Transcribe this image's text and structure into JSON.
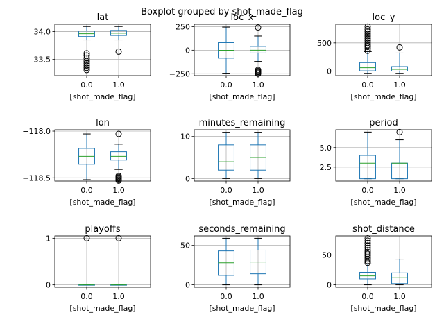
{
  "suptitle": "Boxplot grouped by shot_made_flag",
  "chart_data": [
    {
      "type": "box",
      "title": "lat",
      "xlabel": "[shot_made_flag]",
      "categories": [
        "0.0",
        "1.0"
      ],
      "ylim": [
        33.21,
        34.13
      ],
      "yticks": [
        33.5,
        34.0
      ],
      "ytick_labels": [
        "33.5",
        "34.0"
      ],
      "grid": true,
      "boxes": [
        {
          "whislo": 33.85,
          "q1": 33.91,
          "med": 33.96,
          "q3": 34.01,
          "whishi": 34.09,
          "fliers": [
            33.31,
            33.35,
            33.39,
            33.43,
            33.47,
            33.52,
            33.57,
            33.61
          ]
        },
        {
          "whislo": 33.85,
          "q1": 33.93,
          "med": 33.97,
          "q3": 34.02,
          "whishi": 34.09,
          "fliers": [
            33.64
          ]
        }
      ]
    },
    {
      "type": "box",
      "title": "loc_x",
      "xlabel": "[shot_made_flag]",
      "categories": [
        "0.0",
        "1.0"
      ],
      "ylim": [
        -270,
        275
      ],
      "yticks": [
        -250,
        0,
        250
      ],
      "ytick_labels": [
        "−250",
        "0",
        "250"
      ],
      "grid": true,
      "boxes": [
        {
          "whislo": -245,
          "q1": -85,
          "med": -1,
          "q3": 80,
          "whishi": 245,
          "fliers": []
        },
        {
          "whislo": -120,
          "q1": -30,
          "med": 0,
          "q3": 40,
          "whishi": 150,
          "fliers": [
            -250,
            -240,
            -230,
            -220,
            -210,
            240
          ]
        }
      ]
    },
    {
      "type": "box",
      "title": "loc_y",
      "xlabel": "[shot_made_flag]",
      "categories": [
        "0.0",
        "1.0"
      ],
      "ylim": [
        -80,
        830
      ],
      "yticks": [
        0,
        500
      ],
      "ytick_labels": [
        "0",
        "500"
      ],
      "grid": true,
      "boxes": [
        {
          "whislo": -40,
          "q1": 5,
          "med": 60,
          "q3": 150,
          "whishi": 345,
          "fliers": [
            360,
            400,
            430,
            460,
            500,
            540,
            580,
            620,
            660,
            700,
            740,
            790
          ]
        },
        {
          "whislo": -40,
          "q1": 0,
          "med": 30,
          "q3": 80,
          "whishi": 320,
          "fliers": [
            420
          ]
        }
      ]
    },
    {
      "type": "box",
      "title": "lon",
      "xlabel": "[shot_made_flag]",
      "categories": [
        "0.0",
        "1.0"
      ],
      "ylim": [
        -118.535,
        -117.985
      ],
      "yticks": [
        -118.5,
        -118.0
      ],
      "ytick_labels": [
        "−118.5",
        "−118.0"
      ],
      "grid": true,
      "boxes": [
        {
          "whislo": -118.52,
          "q1": -118.355,
          "med": -118.27,
          "q3": -118.185,
          "whishi": -118.03,
          "fliers": []
        },
        {
          "whislo": -118.41,
          "q1": -118.31,
          "med": -118.27,
          "q3": -118.22,
          "whishi": -118.14,
          "fliers": [
            -118.53,
            -118.52,
            -118.51,
            -118.5,
            -118.49,
            -118.48,
            -118.03
          ]
        }
      ]
    },
    {
      "type": "box",
      "title": "minutes_remaining",
      "xlabel": "[shot_made_flag]",
      "categories": [
        "0.0",
        "1.0"
      ],
      "ylim": [
        -0.6,
        11.6
      ],
      "yticks": [
        0,
        10
      ],
      "ytick_labels": [
        "0",
        "10"
      ],
      "grid": true,
      "boxes": [
        {
          "whislo": 0,
          "q1": 2,
          "med": 4,
          "q3": 8,
          "whishi": 11,
          "fliers": []
        },
        {
          "whislo": 0,
          "q1": 2,
          "med": 5,
          "q3": 8,
          "whishi": 11,
          "fliers": []
        }
      ]
    },
    {
      "type": "box",
      "title": "period",
      "xlabel": "[shot_made_flag]",
      "categories": [
        "0.0",
        "1.0"
      ],
      "ylim": [
        0.7,
        7.3
      ],
      "yticks": [
        2.5,
        5.0
      ],
      "ytick_labels": [
        "2.5",
        "5.0"
      ],
      "grid": true,
      "boxes": [
        {
          "whislo": 1,
          "q1": 1,
          "med": 3,
          "q3": 4,
          "whishi": 7,
          "fliers": []
        },
        {
          "whislo": 1,
          "q1": 1,
          "med": 3,
          "q3": 3,
          "whishi": 6,
          "fliers": [
            7
          ]
        }
      ]
    },
    {
      "type": "box",
      "title": "playoffs",
      "xlabel": "[shot_made_flag]",
      "categories": [
        "0.0",
        "1.0"
      ],
      "ylim": [
        -0.05,
        1.05
      ],
      "yticks": [
        0,
        1
      ],
      "ytick_labels": [
        "0",
        "1"
      ],
      "grid": true,
      "boxes": [
        {
          "whislo": 0,
          "q1": 0,
          "med": 0,
          "q3": 0,
          "whishi": 0,
          "fliers": [
            1
          ]
        },
        {
          "whislo": 0,
          "q1": 0,
          "med": 0,
          "q3": 0,
          "whishi": 0,
          "fliers": [
            1
          ]
        }
      ]
    },
    {
      "type": "box",
      "title": "seconds_remaining",
      "xlabel": "[shot_made_flag]",
      "categories": [
        "0.0",
        "1.0"
      ],
      "ylim": [
        -3,
        62
      ],
      "yticks": [
        0,
        50
      ],
      "ytick_labels": [
        "0",
        "50"
      ],
      "grid": true,
      "boxes": [
        {
          "whislo": 0,
          "q1": 12,
          "med": 28,
          "q3": 43,
          "whishi": 59,
          "fliers": []
        },
        {
          "whislo": 0,
          "q1": 14,
          "med": 29,
          "q3": 44,
          "whishi": 59,
          "fliers": []
        }
      ]
    },
    {
      "type": "box",
      "title": "shot_distance",
      "xlabel": "[shot_made_flag]",
      "categories": [
        "0.0",
        "1.0"
      ],
      "ylim": [
        -4,
        82
      ],
      "yticks": [
        0,
        50
      ],
      "ytick_labels": [
        "0",
        "50"
      ],
      "grid": true,
      "boxes": [
        {
          "whislo": 0,
          "q1": 10,
          "med": 15,
          "q3": 21,
          "whishi": 35,
          "fliers": [
            37,
            40,
            43,
            46,
            49,
            52,
            55,
            58,
            62,
            66,
            70,
            74,
            78
          ]
        },
        {
          "whislo": 0,
          "q1": 2,
          "med": 12,
          "q3": 20,
          "whishi": 43,
          "fliers": []
        }
      ]
    }
  ]
}
